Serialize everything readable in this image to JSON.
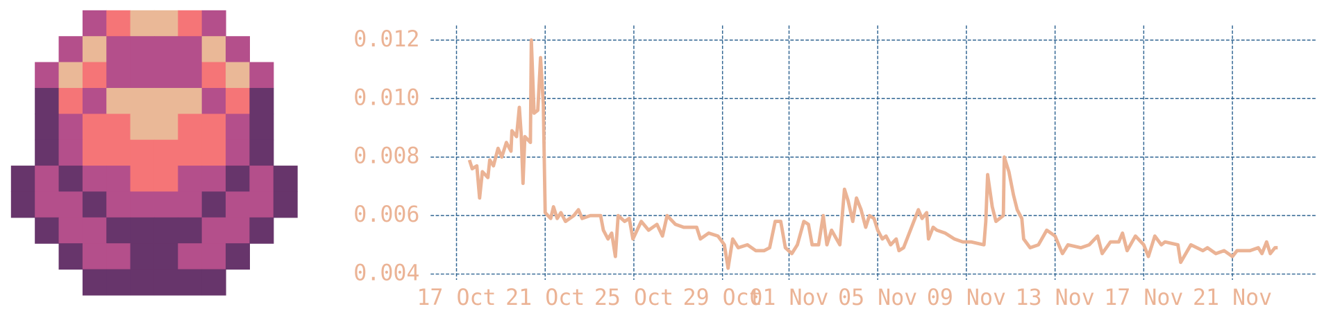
{
  "chart_data": {
    "type": "line",
    "x": [
      "10-17 14:00",
      "10-17 17:00",
      "10-17 22:00",
      "10-18 01:00",
      "10-18 04:00",
      "10-18 10:00",
      "10-18 12:00",
      "10-18 16:00",
      "10-18 21:00",
      "10-19 01:00",
      "10-19 06:00",
      "10-19 11:00",
      "10-19 12:00",
      "10-19 17:00",
      "10-19 20:00",
      "10-19 22:00",
      "10-20 00:00",
      "10-20 02:00",
      "10-20 08:00",
      "10-20 09:00",
      "10-20 12:00",
      "10-20 16:00",
      "10-20 19:00",
      "10-20 22:00",
      "10-21 00:00",
      "10-21 06:00",
      "10-21 09:00",
      "10-21 13:00",
      "10-21 17:00",
      "10-21 22:00",
      "10-22 07:00",
      "10-22 12:00",
      "10-22 16:00",
      "10-23 01:00",
      "10-23 12:00",
      "10-23 15:00",
      "10-23 20:00",
      "10-24 00:00",
      "10-24 04:00",
      "10-24 07:00",
      "10-24 14:00",
      "10-24 19:00",
      "10-24 23:00",
      "10-25 08:00",
      "10-25 16:00",
      "10-26 01:00",
      "10-26 07:00",
      "10-26 12:00",
      "10-26 21:00",
      "10-27 06:00",
      "10-27 20:00",
      "10-28 00:00",
      "10-28 09:00",
      "10-28 19:00",
      "10-29 02:00",
      "10-29 06:00",
      "10-29 11:00",
      "10-29 17:00",
      "10-30 03:00",
      "10-30 12:00",
      "10-30 21:00",
      "10-31 03:00",
      "10-31 09:00",
      "10-31 15:00",
      "10-31 20:00",
      "11-01 03:00",
      "11-01 09:00",
      "11-01 16:00",
      "11-01 21:00",
      "11-02 01:00",
      "11-02 08:00",
      "11-02 13:00",
      "11-02 17:00",
      "11-02 22:00",
      "11-03 07:00",
      "11-03 12:00",
      "11-03 16:00",
      "11-03 21:00",
      "11-04 01:00",
      "11-04 06:00",
      "11-04 11:00",
      "11-04 15:00",
      "11-04 20:00",
      "11-05 00:00",
      "11-05 05:00",
      "11-05 09:00",
      "11-05 14:00",
      "11-05 20:00",
      "11-05 23:00",
      "11-06 04:00",
      "11-06 20:00",
      "11-07 00:00",
      "11-07 05:00",
      "11-07 07:00",
      "11-07 12:00",
      "11-07 16:00",
      "11-08 01:00",
      "11-08 11:00",
      "11-08 20:00",
      "11-09 05:00",
      "11-09 19:00",
      "11-09 21:00",
      "11-09 23:00",
      "11-10 04:00",
      "11-10 08:00",
      "11-10 16:00",
      "11-10 17:00",
      "11-10 22:00",
      "11-11 03:00",
      "11-11 07:00",
      "11-11 12:00",
      "11-11 14:00",
      "11-11 21:00",
      "11-12 06:00",
      "11-12 15:00",
      "11-13 00:00",
      "11-13 08:00",
      "11-13 14:00",
      "11-14 04:00",
      "11-14 13:00",
      "11-14 22:00",
      "11-15 03:00",
      "11-15 12:00",
      "11-15 21:00",
      "11-16 01:00",
      "11-16 06:00",
      "11-16 15:00",
      "11-17 00:00",
      "11-17 05:00",
      "11-17 12:00",
      "11-17 19:00",
      "11-17 23:00",
      "11-18 13:00",
      "11-18 16:00",
      "11-19 03:00",
      "11-19 16:00",
      "11-19 21:00",
      "11-20 06:00",
      "11-20 15:00",
      "11-21 00:00",
      "11-21 05:00",
      "11-21 19:00",
      "11-22 04:00",
      "11-22 08:00",
      "11-22 13:00",
      "11-22 17:00",
      "11-22 22:00",
      "11-23 01:00"
    ],
    "values": [
      0.0079,
      0.0076,
      0.0077,
      0.0066,
      0.0075,
      0.0073,
      0.0079,
      0.0077,
      0.0083,
      0.008,
      0.0085,
      0.0082,
      0.0089,
      0.0087,
      0.0097,
      0.0088,
      0.0071,
      0.0087,
      0.0085,
      0.012,
      0.0095,
      0.0096,
      0.0114,
      0.0098,
      0.0061,
      0.0059,
      0.0063,
      0.0059,
      0.0061,
      0.0058,
      0.006,
      0.0062,
      0.0059,
      0.006,
      0.006,
      0.0055,
      0.0052,
      0.0054,
      0.0046,
      0.006,
      0.0058,
      0.0059,
      0.0052,
      0.0058,
      0.0055,
      0.0057,
      0.0053,
      0.006,
      0.0057,
      0.0056,
      0.0056,
      0.0052,
      0.0054,
      0.0053,
      0.005,
      0.0042,
      0.0052,
      0.0049,
      0.005,
      0.0048,
      0.0048,
      0.0049,
      0.0058,
      0.0058,
      0.0049,
      0.0047,
      0.005,
      0.0058,
      0.0057,
      0.005,
      0.005,
      0.006,
      0.005,
      0.0055,
      0.005,
      0.0069,
      0.0065,
      0.0058,
      0.0066,
      0.0062,
      0.0056,
      0.006,
      0.0059,
      0.0055,
      0.0052,
      0.0053,
      0.005,
      0.0052,
      0.0048,
      0.0049,
      0.0062,
      0.0059,
      0.0061,
      0.0052,
      0.0056,
      0.0055,
      0.0054,
      0.0052,
      0.0051,
      0.0051,
      0.005,
      0.0058,
      0.0074,
      0.0063,
      0.0058,
      0.006,
      0.008,
      0.0075,
      0.0067,
      0.0062,
      0.0059,
      0.0052,
      0.0049,
      0.005,
      0.0055,
      0.0053,
      0.0047,
      0.005,
      0.0049,
      0.005,
      0.0053,
      0.0047,
      0.0051,
      0.0051,
      0.0054,
      0.0048,
      0.0053,
      0.005,
      0.0046,
      0.0053,
      0.005,
      0.0051,
      0.005,
      0.0044,
      0.005,
      0.0048,
      0.0049,
      0.0047,
      0.0048,
      0.0046,
      0.0048,
      0.0048,
      0.0049,
      0.0047,
      0.0051,
      0.0047,
      0.0049,
      0.0049
    ],
    "color": "#ebb395",
    "label_color": "#ebb395",
    "grid_color": "#2e6391",
    "grid": true,
    "xlim": [
      "10-15 20:00",
      "11-24 18:00"
    ],
    "xticks": [
      {
        "value": "10-17 00:00",
        "label": "17 Oct"
      },
      {
        "value": "10-21 00:00",
        "label": "21 Oct"
      },
      {
        "value": "10-25 00:00",
        "label": "25 Oct"
      },
      {
        "value": "10-29 00:00",
        "label": "29 Oct"
      },
      {
        "value": "11-01 00:00",
        "label": "01 Nov"
      },
      {
        "value": "11-05 00:00",
        "label": "05 Nov"
      },
      {
        "value": "11-09 00:00",
        "label": "09 Nov"
      },
      {
        "value": "11-13 00:00",
        "label": "13 Nov"
      },
      {
        "value": "11-17 00:00",
        "label": "17 Nov"
      },
      {
        "value": "11-21 00:00",
        "label": "21 Nov"
      }
    ],
    "ylim": [
      0.0038,
      0.0125
    ],
    "yticks": [
      0.004,
      0.006,
      0.008,
      {
        "value": 0.01,
        "label": "0.010"
      },
      0.012
    ]
  }
}
